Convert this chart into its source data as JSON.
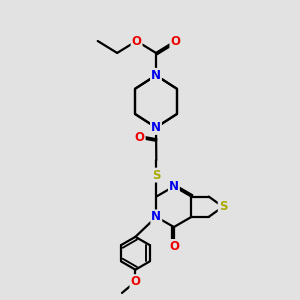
{
  "background_color": "#e2e2e2",
  "atom_colors": {
    "N": "#0000ee",
    "O": "#ee0000",
    "S": "#aaaa00",
    "C": "#000000"
  },
  "lw": 1.6,
  "fs": 8.5,
  "fig_w": 3.0,
  "fig_h": 3.0,
  "xlim": [
    0.5,
    9.5
  ],
  "ylim": [
    0.5,
    10.5
  ]
}
